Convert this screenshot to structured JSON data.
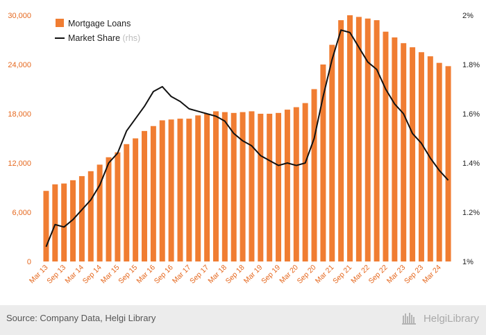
{
  "chart_data": {
    "type": "bar+line",
    "categories": [
      "Mar 13",
      "Jun 13",
      "Sep 13",
      "Dec 13",
      "Mar 14",
      "Jun 14",
      "Sep 14",
      "Dec 14",
      "Mar 15",
      "Jun 15",
      "Sep 15",
      "Dec 15",
      "Mar 16",
      "Jun 16",
      "Sep 16",
      "Dec 16",
      "Mar 17",
      "Jun 17",
      "Sep 17",
      "Dec 17",
      "Mar 18",
      "Jun 18",
      "Sep 18",
      "Dec 18",
      "Mar 19",
      "Jun 19",
      "Sep 19",
      "Dec 19",
      "Mar 20",
      "Jun 20",
      "Sep 20",
      "Dec 20",
      "Mar 21",
      "Jun 21",
      "Sep 21",
      "Dec 21",
      "Mar 22",
      "Jun 22",
      "Sep 22",
      "Dec 22",
      "Mar 23",
      "Jun 23",
      "Sep 23",
      "Dec 23",
      "Mar 24",
      "Jun 24"
    ],
    "x_tick_labels": [
      "Mar 13",
      "Sep 13",
      "Mar 14",
      "Sep 14",
      "Mar 15",
      "Sep 15",
      "Mar 16",
      "Sep 16",
      "Mar 17",
      "Sep 17",
      "Mar 18",
      "Sep 18",
      "Mar 19",
      "Sep 19",
      "Mar 20",
      "Sep 20",
      "Mar 21",
      "Sep 21",
      "Mar 22",
      "Sep 22",
      "Mar 23",
      "Sep 23",
      "Mar 24"
    ],
    "series": [
      {
        "name": "Mortgage Loans",
        "kind": "bar",
        "axis": "left",
        "color": "#f07d32",
        "values": [
          8600,
          9400,
          9500,
          9900,
          10400,
          11000,
          11800,
          12700,
          13300,
          14300,
          15000,
          15900,
          16500,
          17200,
          17300,
          17400,
          17400,
          17800,
          18000,
          18300,
          18200,
          18100,
          18200,
          18300,
          18000,
          18000,
          18100,
          18500,
          18800,
          19300,
          21000,
          24000,
          26400,
          29400,
          30000,
          29800,
          29600,
          29400,
          28000,
          27300,
          26600,
          26100,
          25500,
          25000,
          24200,
          23800
        ]
      },
      {
        "name": "Market Share",
        "legend_suffix": "(rhs)",
        "kind": "line",
        "axis": "right",
        "color": "#111111",
        "values": [
          1.06,
          1.15,
          1.14,
          1.17,
          1.21,
          1.25,
          1.31,
          1.4,
          1.44,
          1.53,
          1.58,
          1.63,
          1.69,
          1.71,
          1.67,
          1.65,
          1.62,
          1.61,
          1.6,
          1.59,
          1.57,
          1.52,
          1.49,
          1.47,
          1.43,
          1.41,
          1.39,
          1.4,
          1.39,
          1.4,
          1.5,
          1.67,
          1.82,
          1.94,
          1.93,
          1.87,
          1.81,
          1.78,
          1.7,
          1.64,
          1.6,
          1.52,
          1.48,
          1.42,
          1.37,
          1.33
        ]
      }
    ],
    "y_left": {
      "min": 0,
      "max": 30000,
      "ticks": [
        "0",
        "6,000",
        "12,000",
        "18,000",
        "24,000",
        "30,000"
      ]
    },
    "y_right": {
      "min": 1,
      "max": 2,
      "ticks": [
        "1%",
        "1.2%",
        "1.4%",
        "1.6%",
        "1.8%",
        "2%"
      ]
    },
    "legend_position": "top-left",
    "grid": false
  },
  "footer": {
    "source": "Source: Company Data, Helgi Library",
    "brand": "HelgiLibrary"
  }
}
